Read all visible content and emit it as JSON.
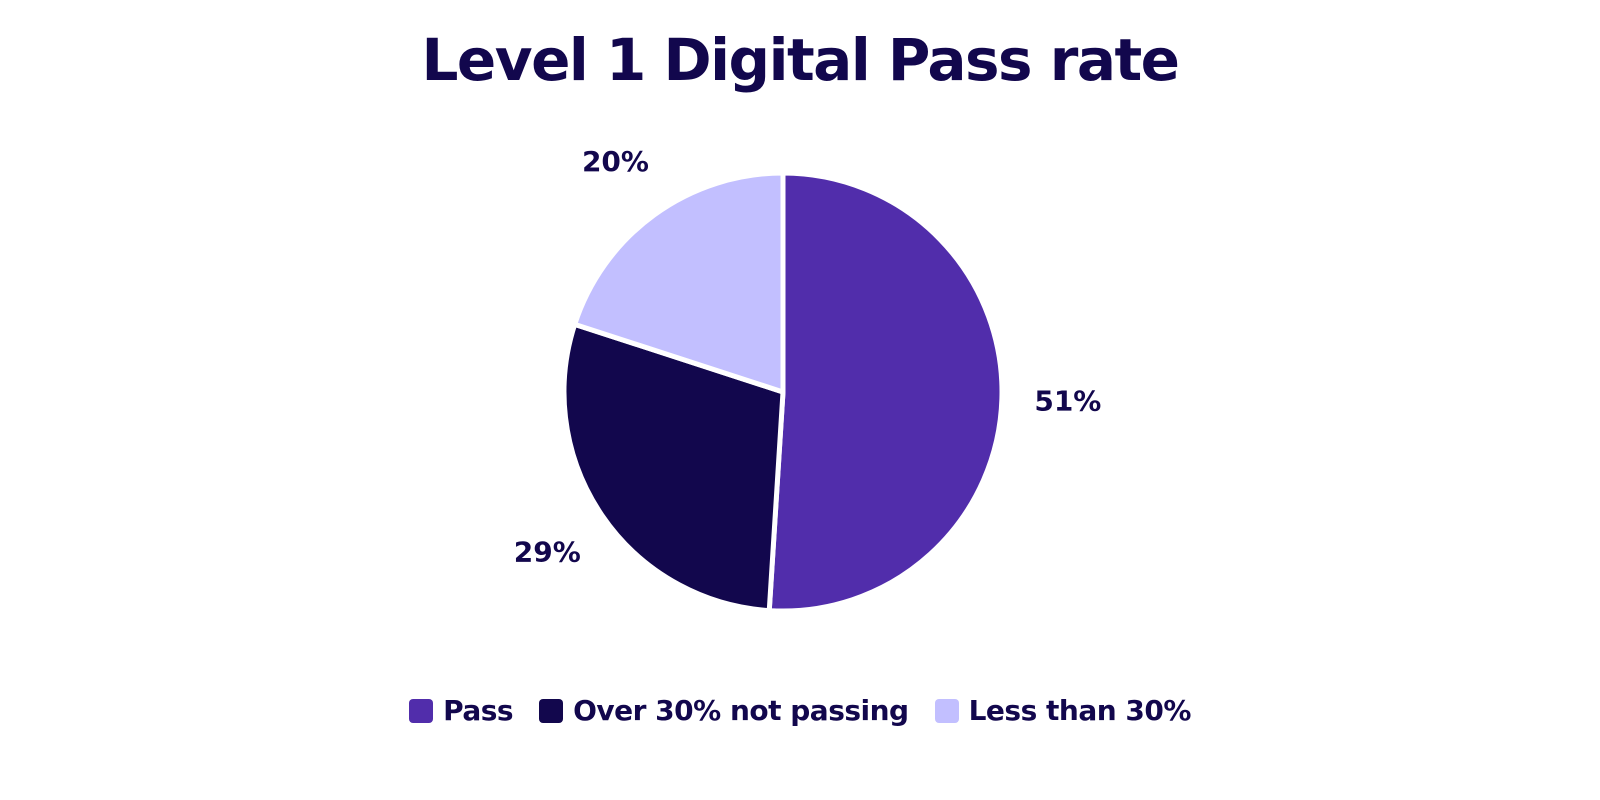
{
  "chart_data": {
    "type": "pie",
    "title": "Level 1 Digital Pass rate",
    "categories": [
      "Pass",
      "Over 30% not passing",
      "Less than 30%"
    ],
    "values": [
      51,
      29,
      20
    ],
    "value_labels": [
      "51%",
      "29%",
      "20%"
    ],
    "colors": [
      "#512DAB",
      "#12074D",
      "#C2BFFF"
    ],
    "start_angle": "12 o'clock",
    "direction": "clockwise",
    "legend_position": "bottom"
  }
}
